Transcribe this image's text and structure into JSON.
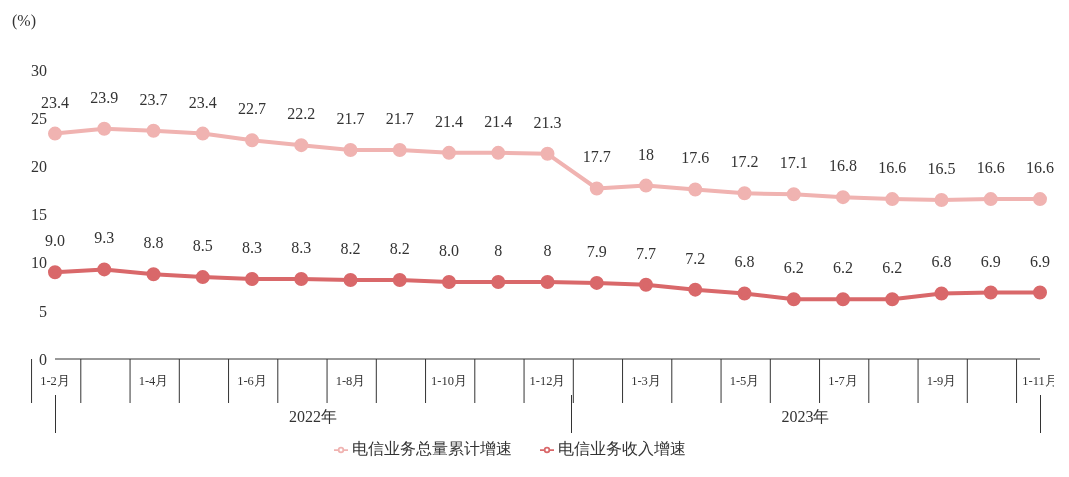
{
  "chart_data": {
    "type": "line",
    "ylabel": "(%)",
    "categories": [
      "1-2月",
      null,
      "1-4月",
      null,
      "1-6月",
      null,
      "1-8月",
      null,
      "1-10月",
      null,
      "1-12月",
      null,
      "1-3月",
      null,
      "1-5月",
      null,
      "1-7月",
      null,
      "1-9月",
      null,
      "1-11月"
    ],
    "series": [
      {
        "name": "电信业务总量累计增速",
        "color": "#f0b3b1",
        "values": [
          23.4,
          23.9,
          23.7,
          23.4,
          22.7,
          22.2,
          21.7,
          21.7,
          21.4,
          21.4,
          21.3,
          17.7,
          18,
          17.6,
          17.2,
          17.1,
          16.8,
          16.6,
          16.5,
          16.6,
          16.6
        ],
        "value_labels": [
          "23.4",
          "23.9",
          "23.7",
          "23.4",
          "22.7",
          "22.2",
          "21.7",
          "21.7",
          "21.4",
          "21.4",
          "21.3",
          "17.7",
          "18",
          "17.6",
          "17.2",
          "17.1",
          "16.8",
          "16.6",
          "16.5",
          "16.6",
          "16.6"
        ]
      },
      {
        "name": "电信业务收入增速",
        "color": "#d9686a",
        "values": [
          9.0,
          9.3,
          8.8,
          8.5,
          8.3,
          8.3,
          8.2,
          8.2,
          8.0,
          8,
          8,
          7.9,
          7.7,
          7.2,
          6.8,
          6.2,
          6.2,
          6.2,
          6.8,
          6.9,
          6.9
        ],
        "value_labels": [
          "9.0",
          "9.3",
          "8.8",
          "8.5",
          "8.3",
          "8.3",
          "8.2",
          "8.2",
          "8.0",
          "8",
          "8",
          "7.9",
          "7.7",
          "7.2",
          "6.8",
          "6.2",
          "6.2",
          "6.2",
          "6.8",
          "6.9",
          "6.9"
        ]
      }
    ],
    "annotations": [
      "2022年",
      "2023年"
    ],
    "ylim": [
      0,
      30
    ],
    "yticks": [
      0,
      5,
      10,
      15,
      20,
      25,
      30
    ],
    "grid": false,
    "legend": "bottom",
    "marker": "circle",
    "line_style": "solid"
  }
}
